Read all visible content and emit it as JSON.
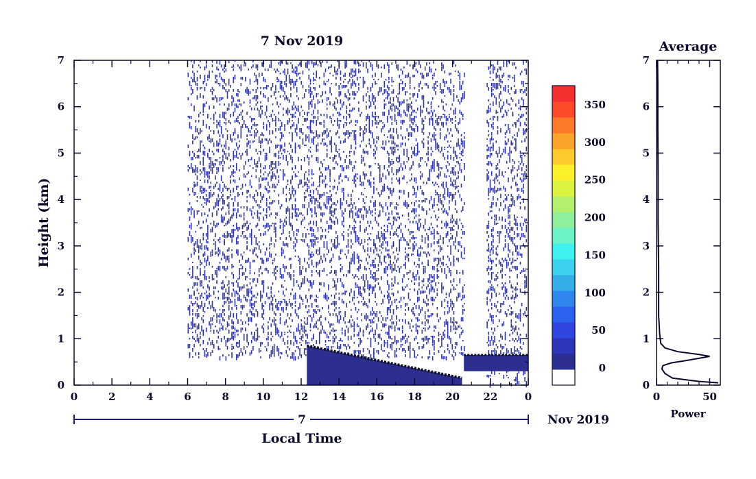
{
  "chart_data": [
    {
      "type": "heatmap",
      "title": "7 Nov 2019",
      "xlabel": "Local Time",
      "ylabel": "Height (km)",
      "xlim": [
        0,
        24
      ],
      "ylim": [
        0,
        7
      ],
      "x_ticks": [
        "0",
        "2",
        "4",
        "6",
        "8",
        "10",
        "12",
        "14",
        "16",
        "18",
        "20",
        "22",
        "0"
      ],
      "y_ticks": [
        "0",
        "1",
        "2",
        "3",
        "4",
        "5",
        "6",
        "7"
      ],
      "date_axis": {
        "day": "7",
        "month_year": "Nov 2019"
      },
      "colorbar": {
        "ticks": [
          "0",
          "50",
          "100",
          "150",
          "200",
          "250",
          "300",
          "350"
        ],
        "range": [
          0,
          380
        ],
        "colors": [
          "#ffffff",
          "#2c2f8f",
          "#2f35b8",
          "#2f47e0",
          "#2c63ee",
          "#2f87ee",
          "#35aee8",
          "#3cd0ee",
          "#3ef0ee",
          "#6ef2c8",
          "#8ef09c",
          "#b4f06e",
          "#dcf440",
          "#fcf02a",
          "#fcca2a",
          "#fca42a",
          "#fc7a2a",
          "#fc4a2a",
          "#f43030"
        ]
      },
      "regions": [
        {
          "kind": "sparse-echo",
          "x": [
            6.0,
            20.6
          ],
          "y": [
            0.6,
            7.0
          ]
        },
        {
          "kind": "sparse-echo",
          "x": [
            21.8,
            23.9
          ],
          "y": [
            0.0,
            7.0
          ]
        },
        {
          "kind": "boundary-layer",
          "x": [
            12.3,
            20.5
          ],
          "y_top_start": 0.85,
          "y_top_end": 0.15
        },
        {
          "kind": "boundary-layer",
          "x": [
            20.6,
            24.0
          ],
          "y": [
            0.3,
            0.65
          ]
        }
      ]
    },
    {
      "type": "line",
      "title": "Average",
      "xlabel": "Power",
      "xlim": [
        0,
        60
      ],
      "ylim": [
        0,
        7
      ],
      "x_ticks": [
        "0",
        "50"
      ],
      "y_ticks": [
        "0",
        "1",
        "2",
        "3",
        "4",
        "5",
        "6",
        "7"
      ],
      "series": [
        {
          "x": [
            58,
            40,
            15,
            8,
            5,
            6,
            14,
            28,
            38,
            50,
            40,
            20,
            8,
            4,
            3,
            2,
            2,
            1.5,
            1.5,
            1.2,
            1.2,
            1.0
          ],
          "y": [
            0.05,
            0.08,
            0.15,
            0.25,
            0.35,
            0.42,
            0.48,
            0.53,
            0.57,
            0.62,
            0.66,
            0.72,
            0.8,
            0.9,
            1.1,
            1.5,
            2.5,
            3.5,
            4.5,
            5.5,
            6.5,
            7.0
          ]
        }
      ]
    }
  ]
}
